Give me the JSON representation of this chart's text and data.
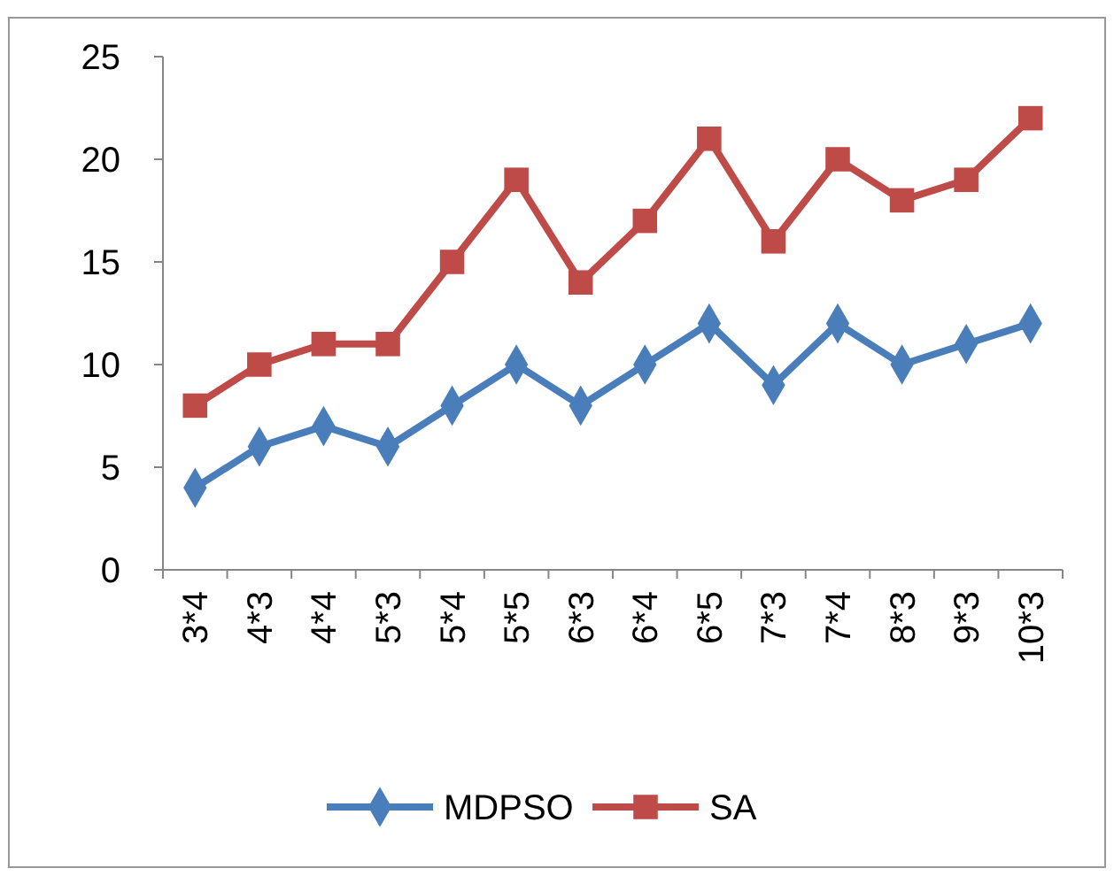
{
  "chart_data": {
    "type": "line",
    "categories": [
      "3*4",
      "4*3",
      "4*4",
      "5*3",
      "5*4",
      "5*5",
      "6*3",
      "6*4",
      "6*5",
      "7*3",
      "7*4",
      "8*3",
      "9*3",
      "10*3"
    ],
    "series": [
      {
        "name": "MDPSO",
        "color": "#4a7ebb",
        "marker": "diamond",
        "values": [
          4,
          6,
          7,
          6,
          8,
          10,
          8,
          10,
          12,
          9,
          12,
          10,
          11,
          12
        ]
      },
      {
        "name": "SA",
        "color": "#be4b48",
        "marker": "square",
        "values": [
          8,
          10,
          11,
          11,
          15,
          19,
          14,
          17,
          21,
          16,
          20,
          18,
          19,
          22
        ]
      }
    ],
    "ylim": [
      0,
      25
    ],
    "yticks": [
      0,
      5,
      10,
      15,
      20,
      25
    ],
    "grid": false,
    "legend": "bottom",
    "line_style": "solid"
  }
}
